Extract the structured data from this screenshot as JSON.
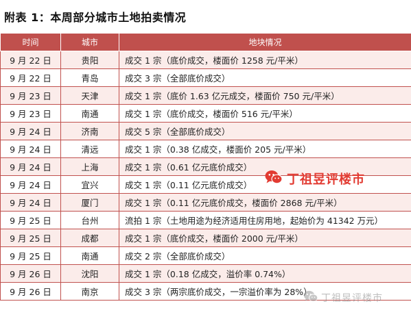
{
  "title": "附表 1：本周部分城市土地拍卖情况",
  "table": {
    "headers": [
      "时间",
      "城市",
      "地块情况"
    ],
    "rows": [
      {
        "date": "9 月 22 日",
        "city": "贵阳",
        "info": "成交 1 宗（底价成交，楼面价 1258 元/平米）"
      },
      {
        "date": "9 月 22 日",
        "city": "青岛",
        "info": "成交 3 宗（全部底价成交）"
      },
      {
        "date": "9 月 23 日",
        "city": "天津",
        "info": "成交 1 宗（底价 1.63 亿元成交，楼面价 750 元/平米）"
      },
      {
        "date": "9 月 23 日",
        "city": "南通",
        "info": "成交 1 宗（底价成交，楼面价 516 元/平米）"
      },
      {
        "date": "9 月 24 日",
        "city": "济南",
        "info": "成交 5 宗（全部底价成交）"
      },
      {
        "date": "9 月 24 日",
        "city": "清远",
        "info": "成交 1 宗（0.38 亿成交，楼面价 205 元/平米）"
      },
      {
        "date": "9 月 24 日",
        "city": "上海",
        "info": "成交 1 宗（0.61 亿元底价成交）"
      },
      {
        "date": "9 月 24 日",
        "city": "宜兴",
        "info": "成交 1 宗（0.11 亿元底价成交）"
      },
      {
        "date": "9 月 24 日",
        "city": "厦门",
        "info": "成交 1 宗（0.11 亿元底价成交，楼面价 2868 元/平米）"
      },
      {
        "date": "9 月 25 日",
        "city": "台州",
        "info": "流拍 1 宗（土地用途为经济适用住房用地，起始价为 41342 万元）"
      },
      {
        "date": "9 月 25 日",
        "city": "成都",
        "info": "成交 1 宗（底价成交，楼面价 2000 元/平米）"
      },
      {
        "date": "9 月 25 日",
        "city": "南通",
        "info": "成交 2 宗（全部底价成交）"
      },
      {
        "date": "9 月 26 日",
        "city": "沈阳",
        "info": "成交 1 宗（0.18 亿成交，溢价率 0.74%）"
      },
      {
        "date": "9 月 26 日",
        "city": "南京",
        "info": "成交 3 宗（两宗底价成交，一宗溢价率为 28%）"
      }
    ]
  },
  "watermarks": {
    "main": {
      "text": "丁祖昱评楼市",
      "icon": "wechat-icon",
      "color": "#e23b32"
    },
    "bottom": {
      "text": "丁祖昱评楼市",
      "icon": "wechat-icon",
      "color": "#8a8a8a"
    }
  },
  "colors": {
    "header_bg": "#c0504d",
    "stripe": "#fbecea",
    "border": "#c0504d"
  }
}
